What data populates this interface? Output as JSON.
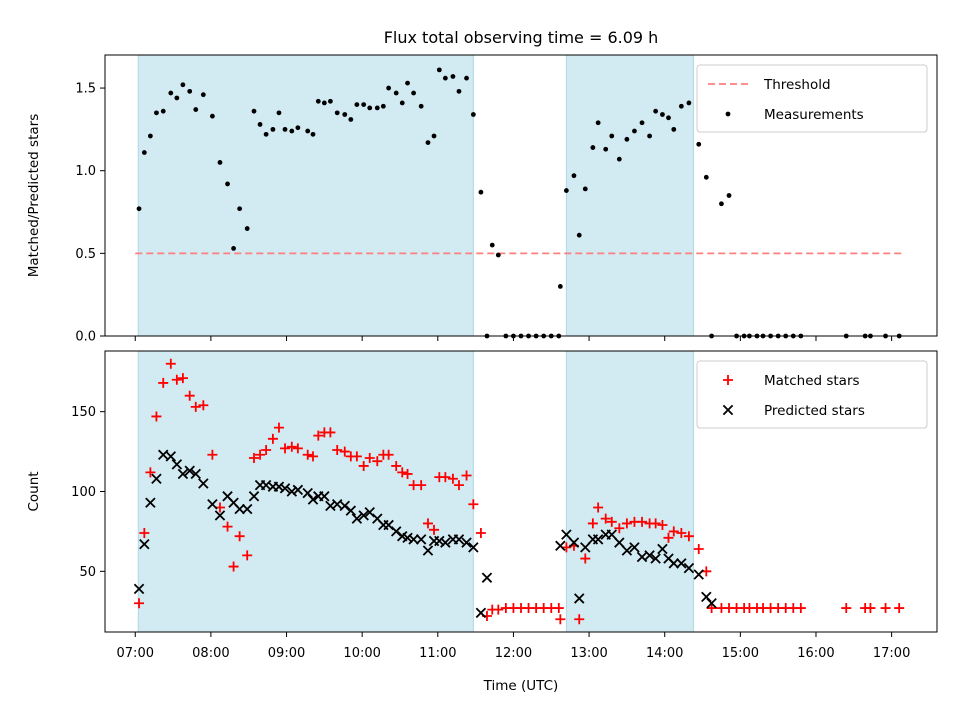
{
  "title": "Flux total observing time = 6.09 h",
  "colors": {
    "shade": "#add8e6",
    "threshold": "#ff7f7f",
    "measurements": "#000000",
    "matched": "#ff0000",
    "predicted": "#000000"
  },
  "x_axis": {
    "label": "Time (UTC)",
    "range_hours": [
      6.6,
      17.6
    ],
    "ticks": [
      {
        "value": 7,
        "label": "07:00"
      },
      {
        "value": 8,
        "label": "08:00"
      },
      {
        "value": 9,
        "label": "09:00"
      },
      {
        "value": 10,
        "label": "10:00"
      },
      {
        "value": 11,
        "label": "11:00"
      },
      {
        "value": 12,
        "label": "12:00"
      },
      {
        "value": 13,
        "label": "13:00"
      },
      {
        "value": 14,
        "label": "14:00"
      },
      {
        "value": 15,
        "label": "15:00"
      },
      {
        "value": 16,
        "label": "16:00"
      },
      {
        "value": 17,
        "label": "17:00"
      }
    ]
  },
  "shaded_intervals": [
    [
      7.04,
      11.47
    ],
    [
      12.7,
      14.38
    ]
  ],
  "chart_data": [
    {
      "type": "scatter",
      "panel": "top",
      "ylabel": "Matched/Predicted stars",
      "ylim": [
        0,
        1.7
      ],
      "yticks": [
        {
          "value": 0,
          "label": "0.0"
        },
        {
          "value": 0.5,
          "label": "0.5"
        },
        {
          "value": 1.0,
          "label": "1.0"
        },
        {
          "value": 1.5,
          "label": "1.5"
        }
      ],
      "threshold": {
        "name": "Threshold",
        "y": 0.5,
        "x_range": [
          7.0,
          17.15
        ]
      },
      "legend": {
        "placement": "upper right",
        "entries": [
          "Threshold",
          "Measurements"
        ]
      },
      "series": [
        {
          "name": "Measurements",
          "x": [
            7.05,
            7.12,
            7.2,
            7.28,
            7.37,
            7.47,
            7.55,
            7.63,
            7.72,
            7.8,
            7.9,
            8.02,
            8.12,
            8.22,
            8.3,
            8.38,
            8.48,
            8.57,
            8.65,
            8.73,
            8.82,
            8.9,
            8.98,
            9.07,
            9.15,
            9.28,
            9.35,
            9.42,
            9.5,
            9.58,
            9.67,
            9.77,
            9.85,
            9.93,
            10.02,
            10.1,
            10.2,
            10.28,
            10.35,
            10.45,
            10.53,
            10.6,
            10.68,
            10.78,
            10.87,
            10.95,
            11.02,
            11.1,
            11.2,
            11.28,
            11.38,
            11.47,
            11.57,
            11.65,
            11.72,
            11.8,
            11.9,
            12.0,
            12.1,
            12.2,
            12.3,
            12.4,
            12.5,
            12.6,
            12.62,
            12.7,
            12.8,
            12.87,
            12.95,
            13.05,
            13.12,
            13.22,
            13.3,
            13.4,
            13.5,
            13.6,
            13.7,
            13.8,
            13.88,
            13.97,
            14.05,
            14.12,
            14.22,
            14.32,
            14.45,
            14.55,
            14.62,
            14.75,
            14.85,
            14.95,
            15.05,
            15.12,
            15.22,
            15.3,
            15.4,
            15.5,
            15.6,
            15.7,
            15.8,
            16.4,
            16.65,
            16.72,
            16.92,
            17.1
          ],
          "y": [
            0.77,
            1.11,
            1.21,
            1.35,
            1.36,
            1.47,
            1.44,
            1.52,
            1.48,
            1.37,
            1.46,
            1.33,
            1.05,
            0.92,
            0.53,
            0.77,
            0.65,
            1.36,
            1.28,
            1.22,
            1.25,
            1.35,
            1.25,
            1.24,
            1.26,
            1.24,
            1.22,
            1.42,
            1.41,
            1.42,
            1.35,
            1.34,
            1.31,
            1.4,
            1.4,
            1.38,
            1.38,
            1.39,
            1.5,
            1.47,
            1.41,
            1.53,
            1.47,
            1.39,
            1.17,
            1.21,
            1.61,
            1.56,
            1.57,
            1.48,
            1.56,
            1.34,
            0.87,
            0.0,
            0.55,
            0.49,
            0.0,
            0.0,
            0.0,
            0.0,
            0.0,
            0.0,
            0.0,
            0.0,
            0.3,
            0.88,
            0.97,
            0.61,
            0.89,
            1.14,
            1.29,
            1.13,
            1.21,
            1.07,
            1.19,
            1.24,
            1.29,
            1.21,
            1.36,
            1.34,
            1.32,
            1.25,
            1.39,
            1.41,
            1.16,
            0.96,
            0.0,
            0.8,
            0.85,
            0.0,
            0.0,
            0.0,
            0.0,
            0.0,
            0.0,
            0.0,
            0.0,
            0.0,
            0.0,
            0.0,
            0.0,
            0.0,
            0.0,
            0.0
          ]
        }
      ]
    },
    {
      "type": "scatter",
      "panel": "bottom",
      "ylabel": "Count",
      "ylim": [
        12,
        188
      ],
      "yticks": [
        {
          "value": 50,
          "label": "50"
        },
        {
          "value": 100,
          "label": "100"
        },
        {
          "value": 150,
          "label": "150"
        }
      ],
      "legend": {
        "placement": "upper right",
        "entries": [
          "Matched stars",
          "Predicted stars"
        ]
      },
      "series": [
        {
          "name": "Matched stars",
          "marker": "+",
          "x": [
            7.05,
            7.12,
            7.2,
            7.28,
            7.37,
            7.47,
            7.55,
            7.63,
            7.72,
            7.8,
            7.9,
            8.02,
            8.12,
            8.22,
            8.3,
            8.38,
            8.48,
            8.57,
            8.65,
            8.73,
            8.82,
            8.9,
            8.98,
            9.07,
            9.15,
            9.28,
            9.35,
            9.42,
            9.5,
            9.58,
            9.67,
            9.77,
            9.85,
            9.93,
            10.02,
            10.1,
            10.2,
            10.28,
            10.35,
            10.45,
            10.53,
            10.6,
            10.68,
            10.78,
            10.87,
            10.95,
            11.02,
            11.1,
            11.2,
            11.28,
            11.38,
            11.47,
            11.57,
            11.65,
            11.72,
            11.8,
            11.9,
            12.0,
            12.1,
            12.2,
            12.3,
            12.4,
            12.5,
            12.6,
            12.62,
            12.7,
            12.8,
            12.87,
            12.95,
            13.05,
            13.12,
            13.22,
            13.3,
            13.4,
            13.5,
            13.6,
            13.7,
            13.8,
            13.88,
            13.97,
            14.05,
            14.12,
            14.22,
            14.32,
            14.45,
            14.55,
            14.62,
            14.75,
            14.85,
            14.95,
            15.05,
            15.12,
            15.22,
            15.3,
            15.4,
            15.5,
            15.6,
            15.7,
            15.8,
            16.4,
            16.65,
            16.72,
            16.92,
            17.1
          ],
          "y": [
            30,
            74,
            112,
            147,
            168,
            180,
            170,
            171,
            160,
            153,
            154,
            123,
            90,
            78,
            53,
            72,
            60,
            121,
            123,
            126,
            133,
            140,
            127,
            128,
            127,
            123,
            122,
            135,
            137,
            137,
            126,
            125,
            122,
            122,
            116,
            121,
            119,
            123,
            123,
            116,
            112,
            111,
            104,
            104,
            80,
            76,
            109,
            109,
            108,
            104,
            110,
            92,
            74,
            22,
            26,
            26,
            27,
            27,
            27,
            27,
            27,
            27,
            27,
            27,
            20,
            65,
            66,
            20,
            58,
            80,
            90,
            83,
            81,
            77,
            80,
            81,
            81,
            80,
            80,
            79,
            71,
            75,
            74,
            72,
            64,
            50,
            27,
            27,
            27,
            27,
            27,
            27,
            27,
            27,
            27,
            27,
            27,
            27,
            27,
            27,
            27,
            27,
            27,
            27
          ]
        },
        {
          "name": "Predicted stars",
          "marker": "x",
          "x": [
            7.05,
            7.12,
            7.2,
            7.28,
            7.37,
            7.47,
            7.55,
            7.63,
            7.72,
            7.8,
            7.9,
            8.02,
            8.12,
            8.22,
            8.3,
            8.38,
            8.48,
            8.57,
            8.65,
            8.73,
            8.82,
            8.9,
            8.98,
            9.07,
            9.15,
            9.28,
            9.35,
            9.42,
            9.5,
            9.58,
            9.67,
            9.77,
            9.85,
            9.93,
            10.02,
            10.1,
            10.2,
            10.28,
            10.35,
            10.45,
            10.53,
            10.6,
            10.68,
            10.78,
            10.87,
            10.95,
            11.02,
            11.1,
            11.2,
            11.28,
            11.38,
            11.47,
            11.57,
            11.65,
            12.62,
            12.7,
            12.8,
            12.87,
            12.95,
            13.05,
            13.12,
            13.22,
            13.3,
            13.4,
            13.5,
            13.6,
            13.7,
            13.8,
            13.88,
            13.97,
            14.05,
            14.12,
            14.22,
            14.32,
            14.45,
            14.55,
            14.62
          ],
          "y": [
            39,
            67,
            93,
            108,
            123,
            122,
            117,
            111,
            113,
            111,
            105,
            92,
            85,
            97,
            93,
            89,
            89,
            97,
            104,
            104,
            103,
            103,
            102,
            100,
            101,
            99,
            95,
            97,
            97,
            91,
            92,
            91,
            88,
            83,
            85,
            87,
            83,
            79,
            79,
            75,
            72,
            71,
            70,
            70,
            63,
            69,
            69,
            68,
            70,
            70,
            68,
            65,
            24,
            46,
            66,
            73,
            68,
            33,
            65,
            70,
            70,
            73,
            73,
            68,
            63,
            65,
            59,
            60,
            58,
            64,
            58,
            55,
            55,
            52,
            48,
            34,
            30
          ]
        }
      ]
    }
  ]
}
